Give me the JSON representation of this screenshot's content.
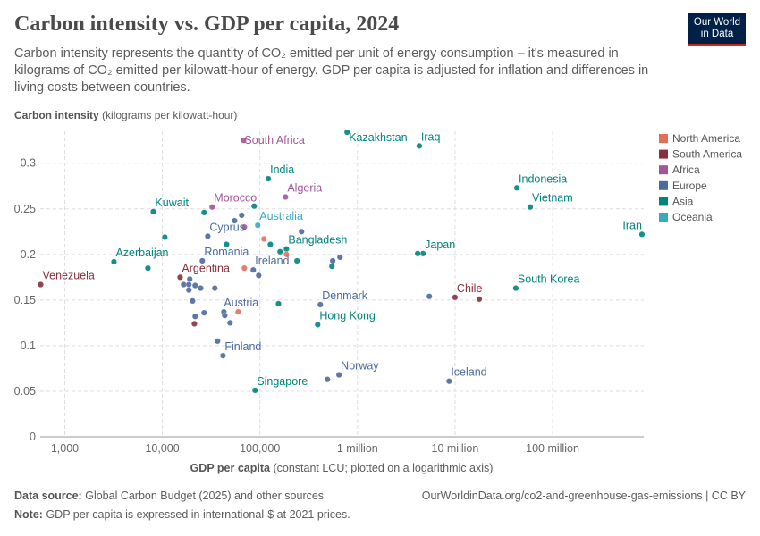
{
  "header": {
    "title": "Carbon intensity vs. GDP per capita, 2024",
    "subtitle": "Carbon intensity represents the quantity of CO₂ emitted per unit of energy consumption – it's measured in kilograms of CO₂ emitted per kilowatt-hour of energy. GDP per capita is adjusted for inflation and differences in living costs between countries.",
    "logo": "Our World in Data"
  },
  "footer": {
    "source_label": "Data source:",
    "source": "Global Carbon Budget (2025) and other sources",
    "url": "OurWorldinData.org/co2-and-greenhouse-gas-emissions | CC BY",
    "note_label": "Note:",
    "note": "GDP per capita is expressed in international-$ at 2021 prices."
  },
  "chart_data": {
    "type": "scatter",
    "title": "Carbon intensity vs. GDP per capita, 2024",
    "ylabel_bold": "Carbon intensity",
    "ylabel_rest": "(kilograms per kilowatt-hour)",
    "xlabel_bold": "GDP per capita",
    "xlabel_rest": "(constant LCU; plotted on a logarithmic axis)",
    "x_scale": "log",
    "xlim": [
      560,
      860000000
    ],
    "ylim": [
      0,
      0.335
    ],
    "grid": true,
    "legend_position": "right",
    "xticks": [
      {
        "v": 1000,
        "l": "1,000"
      },
      {
        "v": 10000,
        "l": "10,000"
      },
      {
        "v": 100000,
        "l": "100,000"
      },
      {
        "v": 1000000,
        "l": "1 million"
      },
      {
        "v": 10000000,
        "l": "10 million"
      },
      {
        "v": 100000000,
        "l": "100 million"
      }
    ],
    "yticks": [
      {
        "v": 0,
        "l": "0"
      },
      {
        "v": 0.05,
        "l": "0.05"
      },
      {
        "v": 0.1,
        "l": "0.1"
      },
      {
        "v": 0.15,
        "l": "0.15"
      },
      {
        "v": 0.2,
        "l": "0.2"
      },
      {
        "v": 0.25,
        "l": "0.25"
      },
      {
        "v": 0.3,
        "l": "0.3"
      }
    ],
    "legend": [
      {
        "name": "North America",
        "color": "#E56E5A"
      },
      {
        "name": "South America",
        "color": "#883039"
      },
      {
        "name": "Africa",
        "color": "#A2559C"
      },
      {
        "name": "Europe",
        "color": "#4C6A9C"
      },
      {
        "name": "Asia",
        "color": "#00847E"
      },
      {
        "name": "Oceania",
        "color": "#38AABA"
      }
    ],
    "points": [
      {
        "c": "Africa",
        "x": 68000,
        "y": 0.325,
        "label": "South Africa"
      },
      {
        "c": "Asia",
        "x": 783000,
        "y": 0.334,
        "label": "Kazakhstan"
      },
      {
        "c": "Asia",
        "x": 4300000,
        "y": 0.319,
        "label": "Iraq"
      },
      {
        "c": "Asia",
        "x": 122000,
        "y": 0.283,
        "label": "India"
      },
      {
        "c": "Africa",
        "x": 183000,
        "y": 0.263,
        "label": "Algeria"
      },
      {
        "c": "Asia",
        "x": 8070,
        "y": 0.247,
        "label": "Kuwait"
      },
      {
        "c": "Africa",
        "x": 32400,
        "y": 0.252,
        "label": "Morocco"
      },
      {
        "c": "Oceania",
        "x": 95000,
        "y": 0.232,
        "label": "Australia"
      },
      {
        "c": "Europe",
        "x": 29200,
        "y": 0.22,
        "label": "Cyprus"
      },
      {
        "c": "Asia",
        "x": 187000,
        "y": 0.206,
        "label": "Bangladesh"
      },
      {
        "c": "Asia",
        "x": 3190,
        "y": 0.192,
        "label": "Azerbaijan"
      },
      {
        "c": "South America",
        "x": 566,
        "y": 0.167,
        "label": "Venezuela"
      },
      {
        "c": "South America",
        "x": 15200,
        "y": 0.175,
        "label": "Argentina"
      },
      {
        "c": "Europe",
        "x": 25700,
        "y": 0.193,
        "label": "Romania"
      },
      {
        "c": "Europe",
        "x": 85500,
        "y": 0.183,
        "label": "Ireland"
      },
      {
        "c": "Europe",
        "x": 42700,
        "y": 0.137,
        "label": "Austria"
      },
      {
        "c": "Europe",
        "x": 41800,
        "y": 0.089,
        "label": "Finland"
      },
      {
        "c": "Asia",
        "x": 89200,
        "y": 0.051,
        "label": "Singapore"
      },
      {
        "c": "Europe",
        "x": 647000,
        "y": 0.068,
        "label": "Norway"
      },
      {
        "c": "Europe",
        "x": 416000,
        "y": 0.145,
        "label": "Denmark"
      },
      {
        "c": "Asia",
        "x": 391000,
        "y": 0.123,
        "label": "Hong Kong"
      },
      {
        "c": "Asia",
        "x": 4700000,
        "y": 0.201,
        "label": "Japan"
      },
      {
        "c": "South America",
        "x": 10000000,
        "y": 0.153,
        "label": "Chile"
      },
      {
        "c": "Europe",
        "x": 8700000,
        "y": 0.061,
        "label": "Iceland"
      },
      {
        "c": "Asia",
        "x": 43000000,
        "y": 0.273,
        "label": "Indonesia"
      },
      {
        "c": "Asia",
        "x": 59000000,
        "y": 0.252,
        "label": "Vietnam"
      },
      {
        "c": "Asia",
        "x": 824000000,
        "y": 0.222,
        "label": "Iran"
      },
      {
        "c": "Asia",
        "x": 42000000,
        "y": 0.163,
        "label": "South Korea"
      },
      {
        "c": "Asia",
        "x": 26800,
        "y": 0.246
      },
      {
        "c": "Asia",
        "x": 10600,
        "y": 0.219
      },
      {
        "c": "Asia",
        "x": 45500,
        "y": 0.211
      },
      {
        "c": "Asia",
        "x": 128000,
        "y": 0.211
      },
      {
        "c": "Asia",
        "x": 161000,
        "y": 0.203
      },
      {
        "c": "Asia",
        "x": 240000,
        "y": 0.193
      },
      {
        "c": "Asia",
        "x": 547000,
        "y": 0.187
      },
      {
        "c": "Asia",
        "x": 155000,
        "y": 0.146
      },
      {
        "c": "Asia",
        "x": 7110,
        "y": 0.185
      },
      {
        "c": "Asia",
        "x": 87300,
        "y": 0.253
      },
      {
        "c": "Asia",
        "x": 4140000,
        "y": 0.201
      },
      {
        "c": "Europe",
        "x": 65000,
        "y": 0.243
      },
      {
        "c": "Europe",
        "x": 55000,
        "y": 0.237
      },
      {
        "c": "Europe",
        "x": 267000,
        "y": 0.225
      },
      {
        "c": "Europe",
        "x": 558000,
        "y": 0.193
      },
      {
        "c": "Europe",
        "x": 662000,
        "y": 0.197
      },
      {
        "c": "Europe",
        "x": 97100,
        "y": 0.177
      },
      {
        "c": "Europe",
        "x": 19100,
        "y": 0.173
      },
      {
        "c": "Europe",
        "x": 16500,
        "y": 0.167
      },
      {
        "c": "Europe",
        "x": 18700,
        "y": 0.167
      },
      {
        "c": "Europe",
        "x": 21700,
        "y": 0.166
      },
      {
        "c": "Europe",
        "x": 18700,
        "y": 0.161
      },
      {
        "c": "Europe",
        "x": 24700,
        "y": 0.163
      },
      {
        "c": "Europe",
        "x": 34500,
        "y": 0.163
      },
      {
        "c": "Europe",
        "x": 20400,
        "y": 0.149
      },
      {
        "c": "Europe",
        "x": 26800,
        "y": 0.136
      },
      {
        "c": "Europe",
        "x": 21700,
        "y": 0.132
      },
      {
        "c": "Europe",
        "x": 43600,
        "y": 0.133
      },
      {
        "c": "Europe",
        "x": 49400,
        "y": 0.125
      },
      {
        "c": "Europe",
        "x": 36800,
        "y": 0.105
      },
      {
        "c": "Europe",
        "x": 492000,
        "y": 0.063
      },
      {
        "c": "Europe",
        "x": 5450000,
        "y": 0.154
      },
      {
        "c": "North America",
        "x": 69300,
        "y": 0.185
      },
      {
        "c": "North America",
        "x": 187000,
        "y": 0.2
      },
      {
        "c": "North America",
        "x": 59800,
        "y": 0.137
      },
      {
        "c": "North America",
        "x": 110000,
        "y": 0.217
      },
      {
        "c": "South America",
        "x": 21300,
        "y": 0.124
      },
      {
        "c": "South America",
        "x": 17700000,
        "y": 0.151
      },
      {
        "c": "Africa",
        "x": 69300,
        "y": 0.23
      }
    ]
  }
}
